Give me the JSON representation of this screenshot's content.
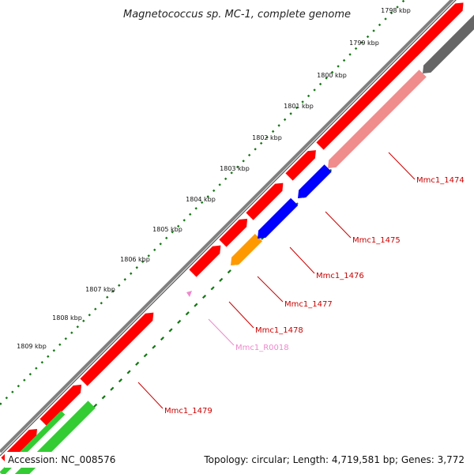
{
  "title": "Magnetococcus sp. MC-1, complete genome",
  "footer": {
    "accession": "Accession: NC_008576",
    "summary": "Topology: circular; Length: 4,719,581 bp; Genes: 3,772"
  },
  "colors": {
    "backbone": "#808080",
    "cds_forward": "#ff0000",
    "cds_reverse_pink": "#f08c8c",
    "cds_reverse_blue": "#0000ff",
    "cds_reverse_orange": "#ff9900",
    "cds_reverse_gray": "#666666",
    "cds_reverse_green": "#33cc33",
    "rna": "#ee88cc",
    "tick": "#117711",
    "label": "#cc0000",
    "rna_label": "#ee88cc"
  },
  "ticks": [
    "1798 kbp",
    "1799 kbp",
    "1800 kbp",
    "1801 kbp",
    "1802 kbp",
    "1803 kbp",
    "1804 kbp",
    "1805 kbp",
    "1806 kbp",
    "1807 kbp",
    "1808 kbp",
    "1809 kbp"
  ],
  "genes": [
    {
      "name": "Mmc1_1474",
      "type": "CDS",
      "color": "cds_reverse_pink"
    },
    {
      "name": "Mmc1_1475",
      "type": "CDS",
      "color": "cds_reverse_blue"
    },
    {
      "name": "Mmc1_1476",
      "type": "CDS",
      "color": "cds_reverse_blue"
    },
    {
      "name": "Mmc1_1477",
      "type": "CDS",
      "color": "cds_reverse_orange"
    },
    {
      "name": "Mmc1_1478",
      "type": "CDS",
      "color": "cds_forward"
    },
    {
      "name": "Mmc1_R0018",
      "type": "RNA",
      "color": "rna"
    },
    {
      "name": "Mmc1_1479",
      "type": "CDS",
      "color": "cds_forward"
    }
  ]
}
